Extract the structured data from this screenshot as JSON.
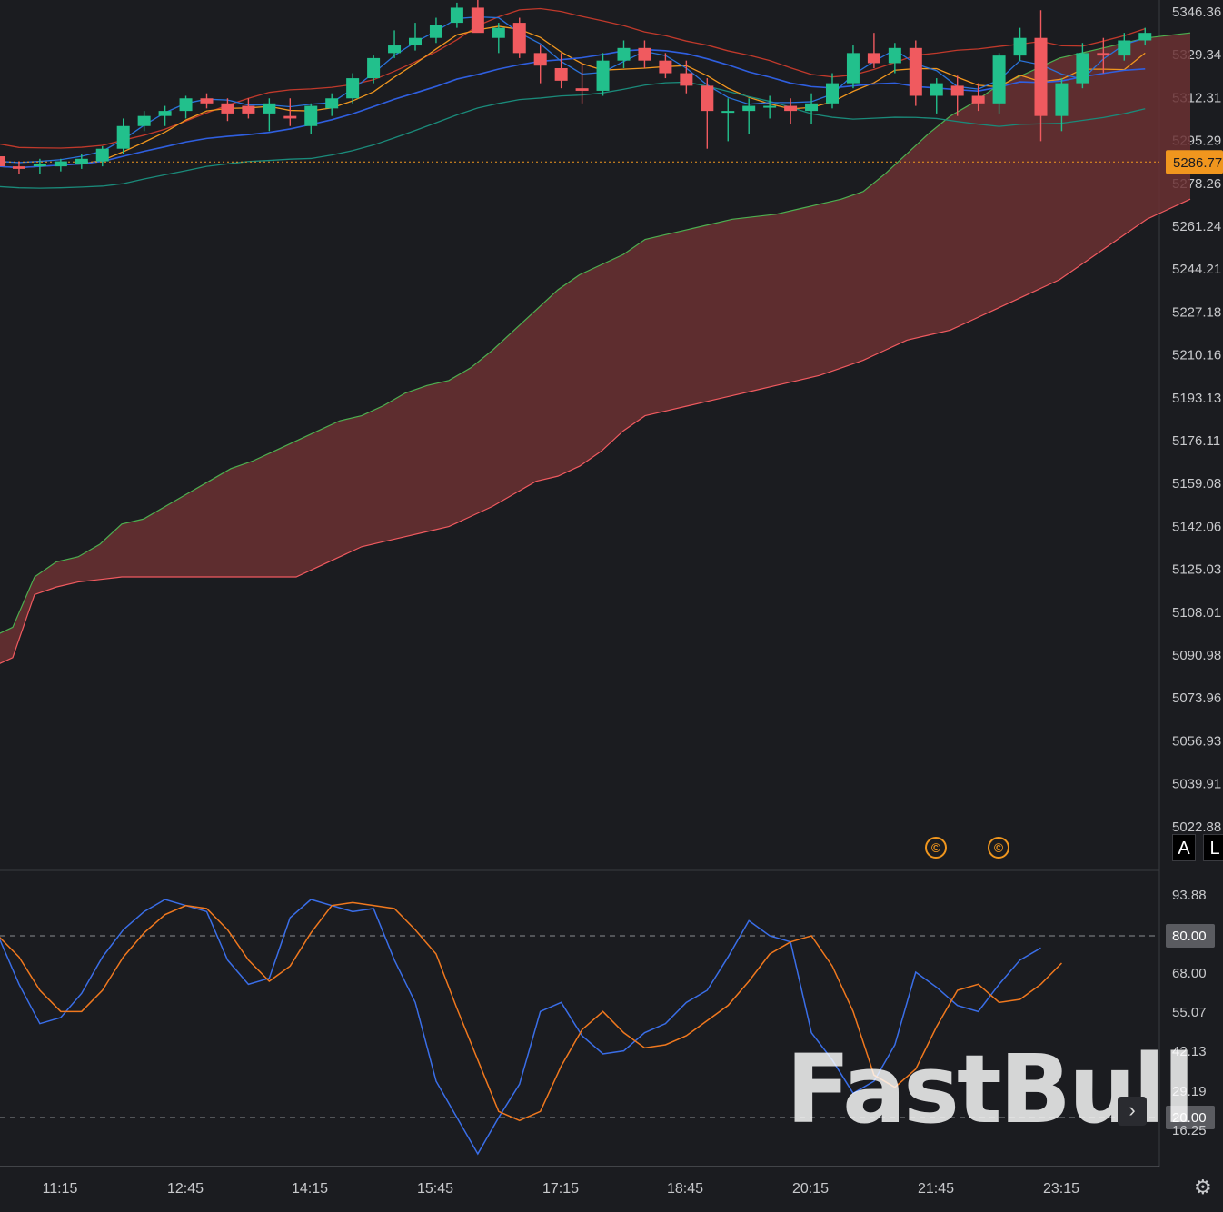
{
  "chart_data": [
    {
      "type": "candlestick",
      "title": "",
      "price_axis_labels": [
        "5346.36",
        "5329.34",
        "5312.31",
        "5295.29",
        "5278.26",
        "5261.24",
        "5244.21",
        "5227.18",
        "5210.16",
        "5193.13",
        "5176.11",
        "5159.08",
        "5142.06",
        "5125.03",
        "5108.01",
        "5090.98",
        "5073.96",
        "5056.93",
        "5039.91",
        "5022.88"
      ],
      "current_price": "5286.77",
      "time_labels": [
        "11:15",
        "12:45",
        "14:15",
        "15:45",
        "17:15",
        "18:45",
        "20:15",
        "21:45",
        "23:15"
      ],
      "candles_ohlc": [
        [
          5289,
          5290,
          5283,
          5285
        ],
        [
          5285,
          5287,
          5282,
          5284
        ],
        [
          5285,
          5288,
          5282,
          5286
        ],
        [
          5285,
          5288,
          5283,
          5287
        ],
        [
          5286,
          5290,
          5284,
          5288
        ],
        [
          5287,
          5293,
          5285,
          5292
        ],
        [
          5292,
          5304,
          5290,
          5301
        ],
        [
          5301,
          5307,
          5299,
          5305
        ],
        [
          5305,
          5309,
          5301,
          5307
        ],
        [
          5307,
          5313,
          5304,
          5312
        ],
        [
          5312,
          5314,
          5308,
          5310
        ],
        [
          5310,
          5312,
          5303,
          5306
        ],
        [
          5309,
          5312,
          5304,
          5306
        ],
        [
          5306,
          5312,
          5299,
          5310
        ],
        [
          5305,
          5312,
          5301,
          5304
        ],
        [
          5301,
          5310,
          5298,
          5309
        ],
        [
          5308,
          5314,
          5305,
          5312
        ],
        [
          5312,
          5322,
          5310,
          5320
        ],
        [
          5320,
          5329,
          5318,
          5328
        ],
        [
          5330,
          5339,
          5328,
          5333
        ],
        [
          5333,
          5342,
          5331,
          5336
        ],
        [
          5336,
          5344,
          5334,
          5341
        ],
        [
          5342,
          5350,
          5340,
          5348
        ],
        [
          5348,
          5355,
          5343,
          5338
        ],
        [
          5336,
          5342,
          5330,
          5340
        ],
        [
          5342,
          5344,
          5328,
          5330
        ],
        [
          5330,
          5333,
          5318,
          5325
        ],
        [
          5324,
          5330,
          5316,
          5319
        ],
        [
          5316,
          5326,
          5310,
          5315
        ],
        [
          5315,
          5330,
          5313,
          5327
        ],
        [
          5327,
          5335,
          5324,
          5332
        ],
        [
          5332,
          5335,
          5324,
          5327
        ],
        [
          5327,
          5330,
          5320,
          5322
        ],
        [
          5322,
          5327,
          5314,
          5317
        ],
        [
          5317,
          5320,
          5292,
          5307
        ],
        [
          5307,
          5312,
          5295,
          5307
        ],
        [
          5307,
          5312,
          5298,
          5309
        ],
        [
          5309,
          5313,
          5304,
          5309
        ],
        [
          5309,
          5312,
          5302,
          5307
        ],
        [
          5307,
          5314,
          5302,
          5310
        ],
        [
          5310,
          5322,
          5308,
          5318
        ],
        [
          5318,
          5333,
          5316,
          5330
        ],
        [
          5330,
          5338,
          5324,
          5326
        ],
        [
          5326,
          5334,
          5322,
          5332
        ],
        [
          5332,
          5335,
          5309,
          5313
        ],
        [
          5313,
          5320,
          5306,
          5318
        ],
        [
          5317,
          5321,
          5305,
          5313
        ],
        [
          5313,
          5318,
          5307,
          5310
        ],
        [
          5310,
          5330,
          5306,
          5329
        ],
        [
          5329,
          5340,
          5327,
          5336
        ],
        [
          5336,
          5347,
          5295,
          5305
        ],
        [
          5305,
          5320,
          5299,
          5318
        ],
        [
          5318,
          5334,
          5316,
          5330
        ],
        [
          5330,
          5336,
          5322,
          5329
        ],
        [
          5329,
          5338,
          5327,
          5335
        ],
        [
          5335,
          5340,
          5333,
          5338
        ]
      ],
      "up_color": "#22c08c",
      "down_color": "#f05a5f",
      "cloud_color": "#6a3032",
      "price_line_color": "#f0961e"
    },
    {
      "type": "line",
      "title": "",
      "y_axis_labels": [
        "93.88",
        "80.00",
        "68.00",
        "55.07",
        "42.13",
        "29.19",
        "20.00",
        "16.25"
      ],
      "upper_band": 80.0,
      "lower_band": 20.0,
      "series": [
        {
          "color": "#3a6ee8",
          "values": [
            80,
            64,
            51,
            53,
            61,
            73,
            82,
            88,
            92,
            90,
            88,
            72,
            64,
            66,
            86,
            92,
            90,
            88,
            89,
            72,
            58,
            32,
            20,
            8,
            20,
            31,
            55,
            58,
            47,
            41,
            42,
            48,
            51,
            58,
            62,
            73,
            85,
            80,
            78,
            48,
            39,
            28,
            32,
            44,
            68,
            63,
            57,
            55,
            64,
            72,
            76
          ]
        },
        {
          "color": "#f0781e",
          "values": [
            80,
            73,
            62,
            55,
            55,
            62,
            73,
            81,
            87,
            90,
            89,
            82,
            72,
            65,
            70,
            81,
            90,
            91,
            90,
            89,
            82,
            74,
            56,
            39,
            22,
            19,
            22,
            37,
            49,
            55,
            48,
            43,
            44,
            47,
            52,
            57,
            65,
            74,
            78,
            80,
            70,
            55,
            34,
            30,
            36,
            50,
            62,
            64,
            58,
            59,
            64,
            71
          ]
        }
      ]
    }
  ],
  "ui": {
    "btn_a": "A",
    "btn_l": "L",
    "event_icon": "©",
    "scroll_icon": "›",
    "gear_icon": "⚙",
    "watermark": "FastBull"
  }
}
